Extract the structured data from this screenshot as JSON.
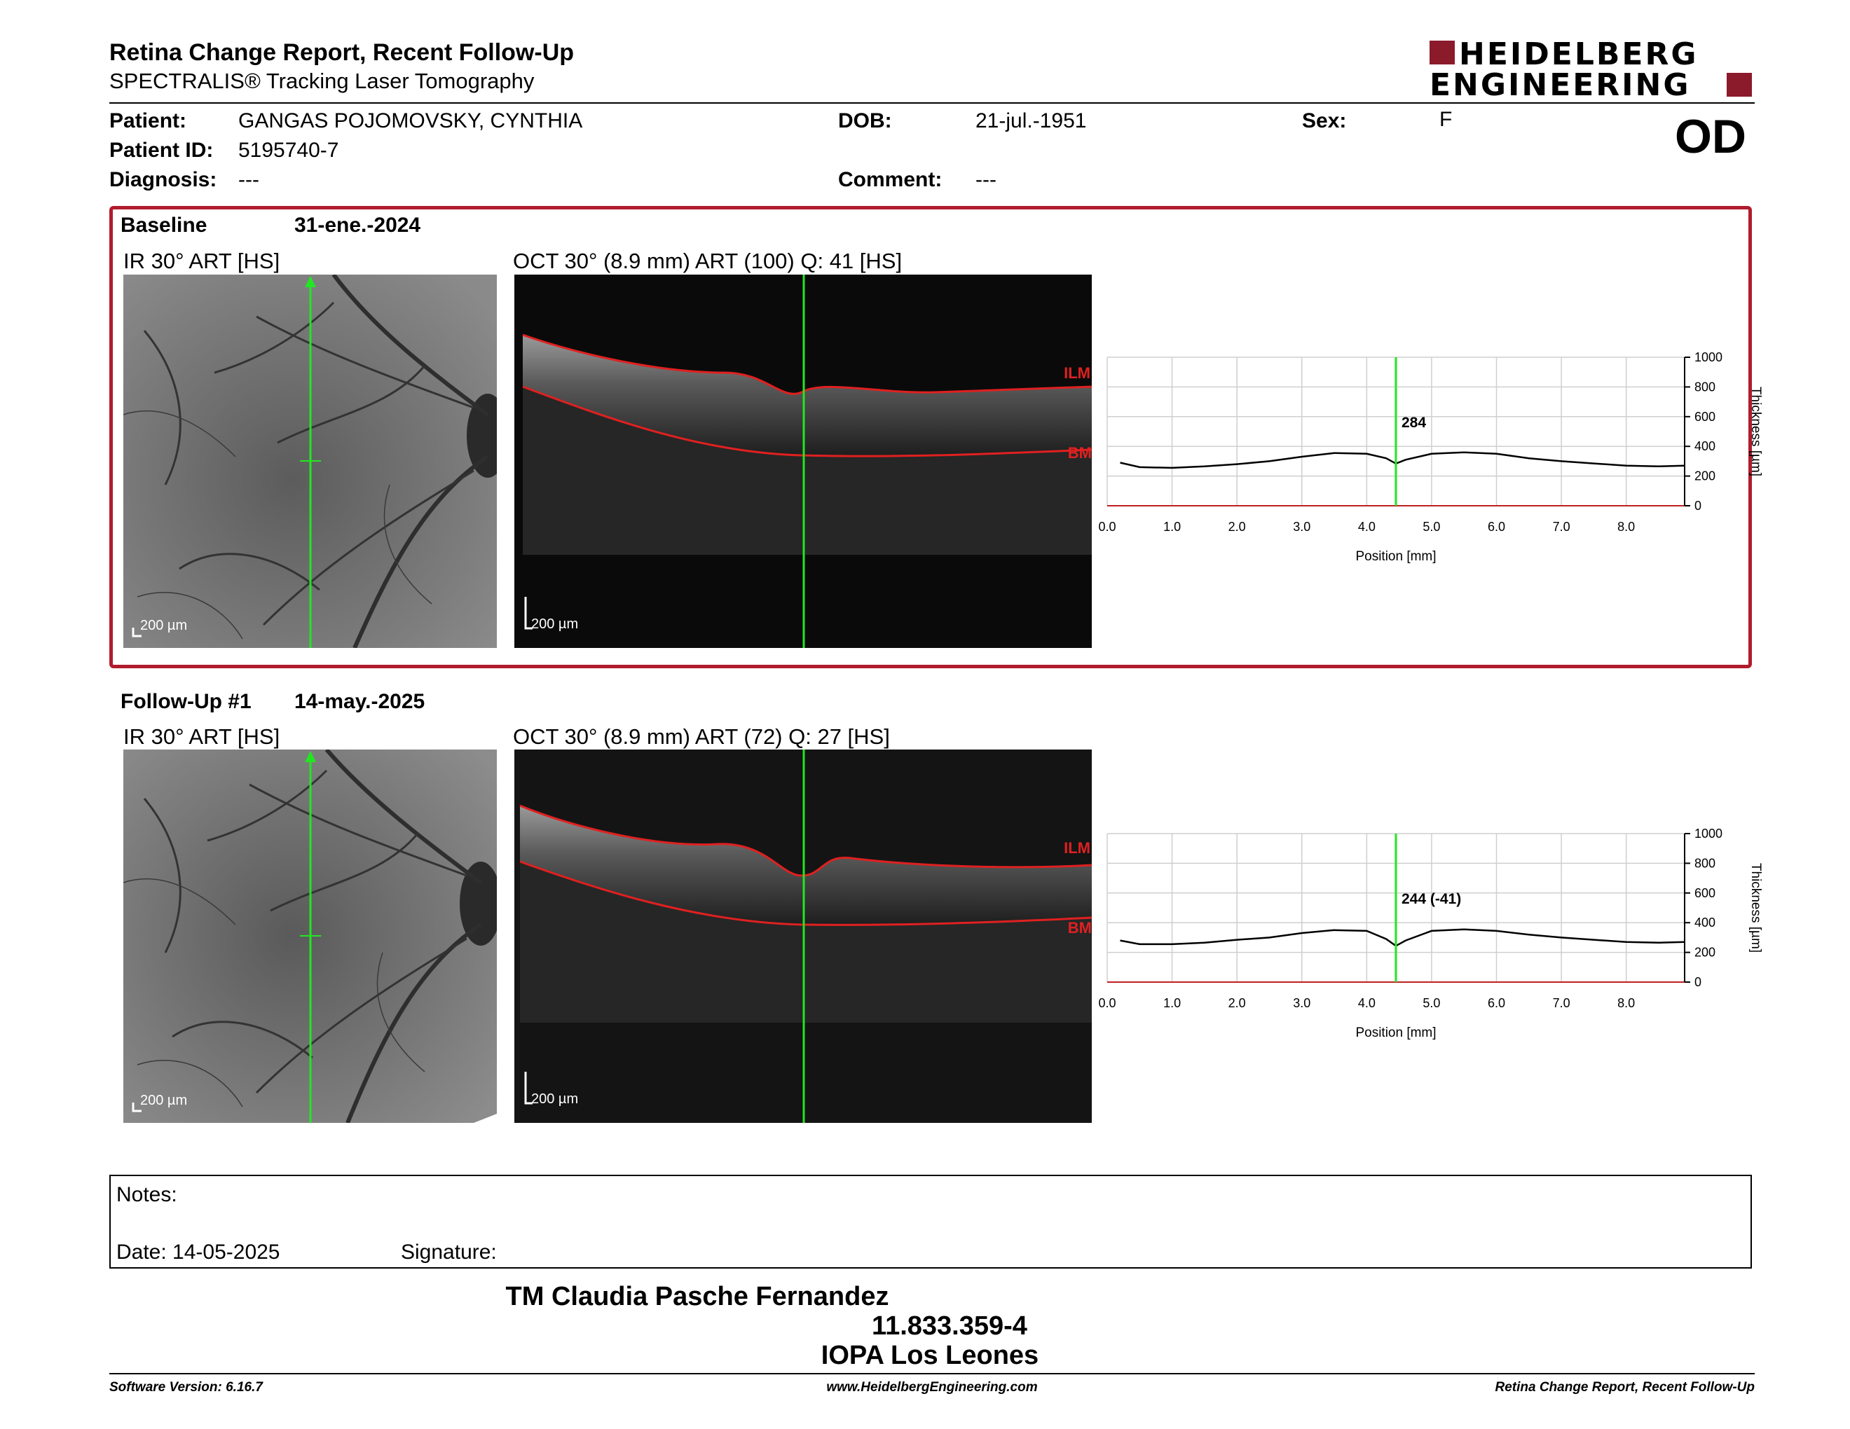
{
  "header": {
    "title": "Retina Change Report, Recent Follow-Up",
    "subtitle": "SPECTRALIS® Tracking Laser Tomography",
    "logo_line1": "HEIDELBERG",
    "logo_line2": "ENGINEERING",
    "eye": "OD"
  },
  "patient": {
    "patient_label": "Patient:",
    "patient_value": "GANGAS POJOMOVSKY, CYNTHIA",
    "id_label": "Patient ID:",
    "id_value": "5195740-7",
    "diagnosis_label": "Diagnosis:",
    "diagnosis_value": "---",
    "dob_label": "DOB:",
    "dob_value": "21-jul.-1951",
    "comment_label": "Comment:",
    "comment_value": "---",
    "sex_label": "Sex:",
    "sex_value": "F"
  },
  "baseline": {
    "label": "Baseline",
    "date": "31-ene.-2024",
    "ir_caption": "IR 30° ART [HS]",
    "oct_caption": "OCT 30° (8.9 mm) ART (100) Q: 41 [HS]",
    "scale_ir": "200 µm",
    "scale_oct": "200 µm",
    "ilm": "ILM",
    "bm": "BM"
  },
  "followup": {
    "label": "Follow-Up #1",
    "date": "14-may.-2025",
    "ir_caption": "IR 30° ART [HS]",
    "oct_caption": "OCT 30° (8.9 mm) ART (72) Q: 27 [HS]",
    "scale_ir": "200 µm",
    "scale_oct": "200 µm",
    "ilm": "ILM",
    "bm": "BM"
  },
  "chart_data": [
    {
      "type": "line",
      "xlabel": "Position [mm]",
      "ylabel": "Thickness [µm]",
      "xlim": [
        0,
        8.9
      ],
      "ylim": [
        0,
        1000
      ],
      "x_ticks": [
        "0.0",
        "1.0",
        "2.0",
        "3.0",
        "4.0",
        "5.0",
        "6.0",
        "7.0",
        "8.0"
      ],
      "y_ticks": [
        "0",
        "200",
        "400",
        "600",
        "800",
        "1000"
      ],
      "cursor_x": 4.45,
      "cursor_label": "284",
      "x": [
        0.2,
        0.5,
        1.0,
        1.5,
        2.0,
        2.5,
        3.0,
        3.5,
        4.0,
        4.3,
        4.45,
        4.6,
        5.0,
        5.5,
        6.0,
        6.5,
        7.0,
        7.5,
        8.0,
        8.5,
        8.9
      ],
      "y": [
        290,
        260,
        255,
        265,
        280,
        300,
        330,
        355,
        350,
        320,
        284,
        310,
        350,
        360,
        350,
        320,
        300,
        285,
        270,
        265,
        270
      ]
    },
    {
      "type": "line",
      "xlabel": "Position [mm]",
      "ylabel": "Thickness [µm]",
      "xlim": [
        0,
        8.9
      ],
      "ylim": [
        0,
        1000
      ],
      "x_ticks": [
        "0.0",
        "1.0",
        "2.0",
        "3.0",
        "4.0",
        "5.0",
        "6.0",
        "7.0",
        "8.0"
      ],
      "y_ticks": [
        "0",
        "200",
        "400",
        "600",
        "800",
        "1000"
      ],
      "cursor_x": 4.45,
      "cursor_label": "244 (-41)",
      "x": [
        0.2,
        0.5,
        1.0,
        1.5,
        2.0,
        2.5,
        3.0,
        3.5,
        4.0,
        4.3,
        4.45,
        4.6,
        5.0,
        5.5,
        6.0,
        6.5,
        7.0,
        7.5,
        8.0,
        8.5,
        8.9
      ],
      "y": [
        280,
        255,
        255,
        265,
        285,
        300,
        330,
        350,
        345,
        290,
        244,
        280,
        345,
        355,
        345,
        320,
        300,
        285,
        270,
        265,
        270
      ]
    }
  ],
  "notes": {
    "notes_label": "Notes:",
    "date_text": "Date: 14-05-2025",
    "signature_label": "Signature:"
  },
  "stamp": {
    "line1": "TM Claudia Pasche Fernandez",
    "line2": "11.833.359-4",
    "line3": "IOPA Los Leones"
  },
  "footer": {
    "left": "Software Version: 6.16.7",
    "center": "www.HeidelbergEngineering.com",
    "right": "Retina Change Report, Recent Follow-Up"
  },
  "colors": {
    "accent_red": "#b01c2e",
    "cursor_green": "#22e622",
    "layer_red": "#e02020"
  }
}
